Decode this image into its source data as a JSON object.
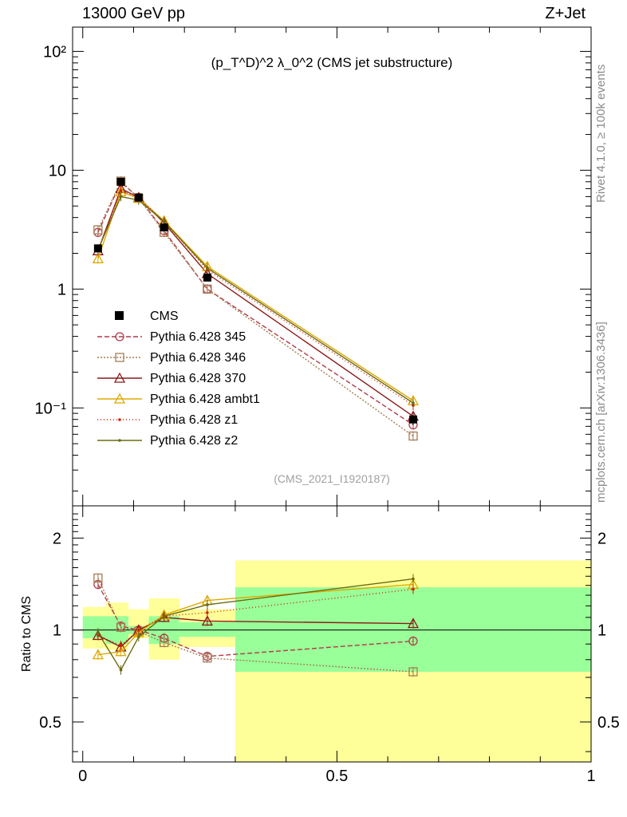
{
  "header": {
    "energy_label": "13000 GeV pp",
    "process_label": "Z+Jet",
    "rivet_label": "Rivet 4.1.0, ≥ 100k events",
    "mcplots_label": "mcplots.cern.ch [arXiv:1306.3436]",
    "analysis_label": "(CMS_2021_I1920187)"
  },
  "chart_data": [
    {
      "type": "line",
      "name": "main-panel",
      "title": "(p_T^D)^2 λ_0^2 (CMS jet substructure)",
      "yscale": "log",
      "xlim": [
        -0.02,
        1.0
      ],
      "ylim": [
        0.015,
        160
      ],
      "ytick_labels": {
        "0.1": "10⁻¹",
        "1": "1",
        "10": "10",
        "100": "10²"
      },
      "x": [
        0.03,
        0.075,
        0.11,
        0.16,
        0.245,
        0.65
      ],
      "data": {
        "name": "CMS",
        "values": [
          2.2,
          8.0,
          5.9,
          3.3,
          1.25,
          0.08
        ],
        "errors": [
          0.15,
          0.3,
          0.2,
          0.15,
          0.08,
          0.008
        ],
        "color": "#000000",
        "marker": "square"
      },
      "series": [
        {
          "name": "Pythia 6.428 345",
          "values": [
            3.0,
            7.9,
            5.9,
            3.1,
            1.0,
            0.072
          ],
          "color": "#b03a48",
          "dash": "6,3",
          "marker": "circle-open"
        },
        {
          "name": "Pythia 6.428 346",
          "values": [
            3.15,
            8.1,
            5.8,
            3.0,
            1.0,
            0.058
          ],
          "color": "#a67c52",
          "dash": "2,2",
          "marker": "square-open"
        },
        {
          "name": "Pythia 6.428 370",
          "values": [
            2.1,
            7.0,
            5.9,
            3.6,
            1.35,
            0.085
          ],
          "color": "#8b1a1a",
          "dash": "",
          "marker": "triangle-open"
        },
        {
          "name": "Pythia 6.428 ambt1",
          "values": [
            1.8,
            6.6,
            5.8,
            3.75,
            1.55,
            0.115
          ],
          "color": "#e0a800",
          "dash": "",
          "marker": "triangle-open"
        },
        {
          "name": "Pythia 6.428 z1",
          "values": [
            2.1,
            6.7,
            5.9,
            3.7,
            1.45,
            0.105
          ],
          "color": "#cc2200",
          "dash": "1,3",
          "marker": "dot"
        },
        {
          "name": "Pythia 6.428 z2",
          "values": [
            2.15,
            6.0,
            5.6,
            3.7,
            1.5,
            0.11
          ],
          "color": "#6b6b10",
          "dash": "",
          "marker": "dot"
        }
      ]
    },
    {
      "type": "line",
      "name": "ratio-panel",
      "ylabel": "Ratio to CMS",
      "yscale": "log",
      "xlim": [
        -0.02,
        1.0
      ],
      "ylim": [
        0.37,
        2.55
      ],
      "yticks": [
        0.5,
        1,
        2
      ],
      "ytick_labels": [
        "0.5",
        "1",
        "2"
      ],
      "xticks": [
        0,
        0.5,
        1
      ],
      "xtick_labels": [
        "0",
        "0.5",
        "1"
      ],
      "bands": [
        {
          "x0": 0.0,
          "x1": 0.045,
          "inner": [
            0.94,
            1.11
          ],
          "outer": [
            0.87,
            1.19
          ]
        },
        {
          "x0": 0.045,
          "x1": 0.09,
          "inner": [
            0.9,
            1.11
          ],
          "outer": [
            0.86,
            1.23
          ]
        },
        {
          "x0": 0.09,
          "x1": 0.13,
          "inner": [
            0.97,
            1.03
          ],
          "outer": [
            0.94,
            1.17
          ]
        },
        {
          "x0": 0.13,
          "x1": 0.19,
          "inner": [
            0.9,
            1.11
          ],
          "outer": [
            0.8,
            1.27
          ]
        },
        {
          "x0": 0.19,
          "x1": 0.3,
          "inner": [
            0.95,
            1.06
          ],
          "outer": [
            0.88,
            1.17
          ]
        },
        {
          "x0": 0.3,
          "x1": 1.0,
          "inner": [
            0.73,
            1.38
          ],
          "outer": [
            0.37,
            1.69
          ]
        }
      ],
      "x": [
        0.03,
        0.075,
        0.11,
        0.16,
        0.245,
        0.65
      ],
      "series": [
        {
          "name": "Pythia 6.428 345",
          "values": [
            1.41,
            1.03,
            1.0,
            0.94,
            0.82,
            0.92
          ],
          "color": "#b03a48",
          "dash": "6,3",
          "marker": "circle-open"
        },
        {
          "name": "Pythia 6.428 346",
          "values": [
            1.48,
            1.02,
            0.99,
            0.91,
            0.81,
            0.73
          ],
          "color": "#a67c52",
          "dash": "2,2",
          "marker": "square-open"
        },
        {
          "name": "Pythia 6.428 370",
          "values": [
            0.96,
            0.88,
            1.0,
            1.1,
            1.07,
            1.05
          ],
          "color": "#8b1a1a",
          "dash": "",
          "marker": "triangle-open"
        },
        {
          "name": "Pythia 6.428 ambt1",
          "values": [
            0.83,
            0.85,
            0.98,
            1.12,
            1.25,
            1.41
          ],
          "color": "#e0a800",
          "dash": "",
          "marker": "triangle-open"
        },
        {
          "name": "Pythia 6.428 z1",
          "values": [
            0.96,
            0.89,
            1.0,
            1.11,
            1.14,
            1.36
          ],
          "color": "#cc2200",
          "dash": "1,3",
          "marker": "dot"
        },
        {
          "name": "Pythia 6.428 z2",
          "values": [
            0.98,
            0.74,
            0.95,
            1.11,
            1.21,
            1.47
          ],
          "color": "#6b6b10",
          "dash": "",
          "marker": "dot"
        }
      ]
    }
  ]
}
